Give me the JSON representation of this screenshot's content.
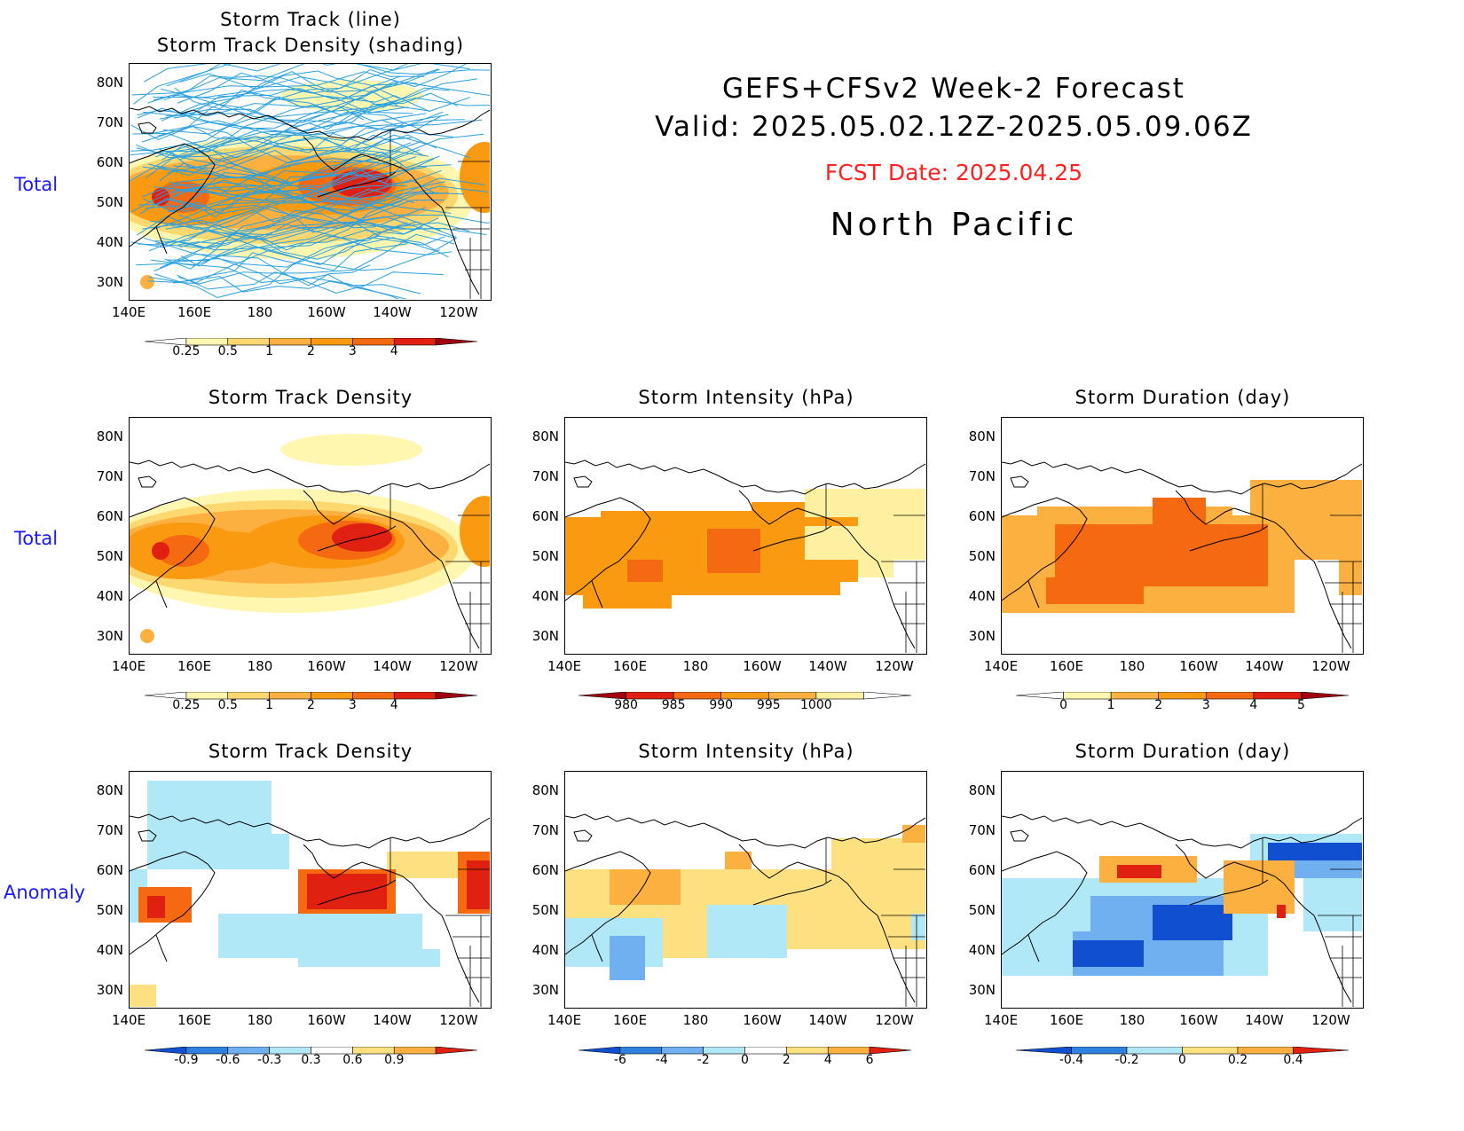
{
  "header": {
    "line1": "GEFS+CFSv2 Week-2 Forecast",
    "line2": "Valid: 2025.05.02.12Z-2025.05.09.06Z",
    "fcst": "FCST Date: 2025.04.25",
    "region": "North Pacific",
    "fcst_color": "#ff2020"
  },
  "rows": {
    "total1": "Total",
    "total2": "Total",
    "anomaly": "Anomaly"
  },
  "titles": {
    "p0a": "Storm Track (line)",
    "p0b": "Storm Track Density (shading)",
    "p1": "Storm Track Density",
    "p2": "Storm Intensity (hPa)",
    "p3": "Storm Duration (day)",
    "p4": "Storm Track Density",
    "p5": "Storm Intensity (hPa)",
    "p6": "Storm Duration (day)"
  },
  "axes": {
    "lat": [
      "80N",
      "70N",
      "60N",
      "50N",
      "40N",
      "30N"
    ],
    "lon": [
      "140E",
      "160E",
      "180",
      "160W",
      "140W",
      "120W"
    ]
  },
  "colorbars": {
    "density": [
      "0.25",
      "0.5",
      "1",
      "2",
      "3",
      "4"
    ],
    "intensity": [
      "980",
      "985",
      "990",
      "995",
      "1000"
    ],
    "duration": [
      "0",
      "1",
      "2",
      "3",
      "4",
      "5"
    ],
    "density_anom": [
      "-0.9",
      "-0.6",
      "-0.3",
      "0.3",
      "0.6",
      "0.9"
    ],
    "intensity_anom": [
      "-6",
      "-4",
      "-2",
      "0",
      "2",
      "4",
      "6"
    ],
    "duration_anom": [
      "-0.4",
      "-0.2",
      "0",
      "0.2",
      "0.4"
    ]
  },
  "colors": {
    "density": [
      "#fff7b0",
      "#fdd870",
      "#fbb040",
      "#f99a10",
      "#f56a10",
      "#e02010",
      "#a00010"
    ],
    "intensity": [
      "#a00010",
      "#e02010",
      "#f56a10",
      "#f99a10",
      "#fbb040",
      "#fdf0a0"
    ],
    "duration": [
      "#fff7b0",
      "#fbb040",
      "#f99a10",
      "#f56a10",
      "#e02010",
      "#a00010"
    ],
    "anom": [
      "#1050d0",
      "#3080e0",
      "#70b0f0",
      "#b0e8f8",
      "#fde080",
      "#fbb040",
      "#f56a10",
      "#e02010"
    ],
    "track_line": "#2aa0e0"
  }
}
